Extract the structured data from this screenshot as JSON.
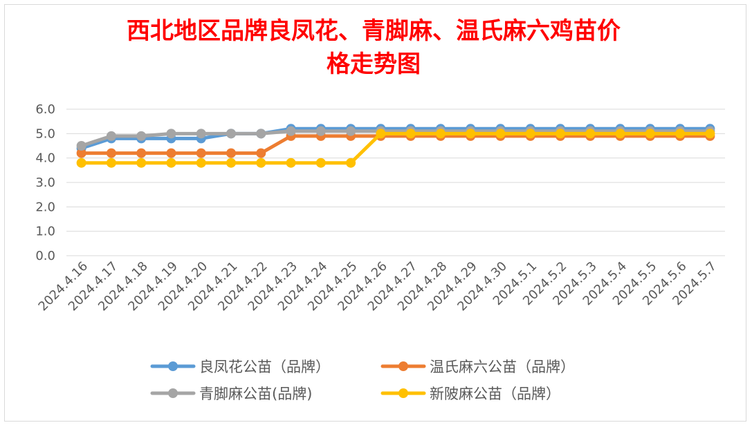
{
  "chart_data": {
    "type": "line",
    "title_line1": "西北地区品牌良凤花、青脚麻、温氏麻六鸡苗价",
    "title_line2": "格走势图",
    "categories": [
      "2024.4.16",
      "2024.4.17",
      "2024.4.18",
      "2024.4.19",
      "2024.4.20",
      "2024.4.21",
      "2024.4.22",
      "2024.4.23",
      "2024.4.24",
      "2024.4.25",
      "2024.4.26",
      "2024.4.27",
      "2024.4.28",
      "2024.4.29",
      "2024.4.30",
      "2024.5.1",
      "2024.5.2",
      "2024.5.3",
      "2024.5.4",
      "2024.5.5",
      "2024.5.6",
      "2024.5.7"
    ],
    "ylim": [
      0,
      6
    ],
    "yticks": [
      "0.0",
      "1.0",
      "2.0",
      "3.0",
      "4.0",
      "5.0",
      "6.0"
    ],
    "grid": true,
    "legend_position": "bottom",
    "series": [
      {
        "name": "良凤花公苗（品牌）",
        "color": "#5b9bd5",
        "values": [
          4.4,
          4.8,
          4.8,
          4.8,
          4.8,
          5.0,
          5.0,
          5.2,
          5.2,
          5.2,
          5.2,
          5.2,
          5.2,
          5.2,
          5.2,
          5.2,
          5.2,
          5.2,
          5.2,
          5.2,
          5.2,
          5.2
        ]
      },
      {
        "name": "温氏麻六公苗（品牌）",
        "color": "#ed7d31",
        "values": [
          4.2,
          4.2,
          4.2,
          4.2,
          4.2,
          4.2,
          4.2,
          4.9,
          4.9,
          4.9,
          4.9,
          4.9,
          4.9,
          4.9,
          4.9,
          4.9,
          4.9,
          4.9,
          4.9,
          4.9,
          4.9,
          4.9
        ]
      },
      {
        "name": "青脚麻公苗(品牌)",
        "color": "#a5a5a5",
        "values": [
          4.5,
          4.9,
          4.9,
          5.0,
          5.0,
          5.0,
          5.0,
          5.1,
          5.1,
          5.1,
          5.1,
          5.1,
          5.1,
          5.1,
          5.1,
          5.1,
          5.1,
          5.1,
          5.1,
          5.1,
          5.1,
          5.1
        ]
      },
      {
        "name": "新陂麻公苗（品牌）",
        "color": "#ffc000",
        "values": [
          3.8,
          3.8,
          3.8,
          3.8,
          3.8,
          3.8,
          3.8,
          3.8,
          3.8,
          3.8,
          5.0,
          5.0,
          5.0,
          5.0,
          5.0,
          5.0,
          5.0,
          5.0,
          5.0,
          5.0,
          5.0,
          5.0
        ]
      }
    ]
  }
}
